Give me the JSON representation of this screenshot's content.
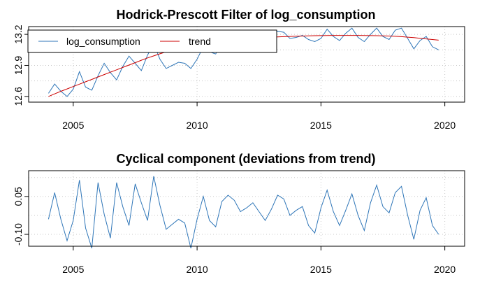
{
  "chart_data": [
    {
      "type": "line",
      "title": "Hodrick-Prescott Filter of log_consumption",
      "xlabel": "",
      "ylabel": "",
      "xlim": [
        2003.2,
        2020.8
      ],
      "ylim": [
        12.545,
        13.275
      ],
      "x_ticks": [
        2005,
        2010,
        2015,
        2020
      ],
      "y_ticks": [
        12.6,
        12.9,
        13.2
      ],
      "y_tick_labels": [
        "12.6",
        "12.9",
        "13.2"
      ],
      "grid": true,
      "legend_position": "top-left",
      "x": [
        2004.0,
        2004.25,
        2004.5,
        2004.75,
        2005.0,
        2005.25,
        2005.5,
        2005.75,
        2006.0,
        2006.25,
        2006.5,
        2006.75,
        2007.0,
        2007.25,
        2007.5,
        2007.75,
        2008.0,
        2008.25,
        2008.5,
        2008.75,
        2009.0,
        2009.25,
        2009.5,
        2009.75,
        2010.0,
        2010.25,
        2010.5,
        2010.75,
        2011.0,
        2011.25,
        2011.5,
        2011.75,
        2012.0,
        2012.25,
        2012.5,
        2012.75,
        2013.0,
        2013.25,
        2013.5,
        2013.75,
        2014.0,
        2014.25,
        2014.5,
        2014.75,
        2015.0,
        2015.25,
        2015.5,
        2015.75,
        2016.0,
        2016.25,
        2016.5,
        2016.75,
        2017.0,
        2017.25,
        2017.5,
        2017.75,
        2018.0,
        2018.25,
        2018.5,
        2018.75,
        2019.0,
        2019.25,
        2019.5,
        2019.75
      ],
      "series": [
        {
          "name": "log_consumption",
          "color": "#2f76b8",
          "values": [
            12.63,
            12.72,
            12.65,
            12.6,
            12.67,
            12.84,
            12.69,
            12.66,
            12.8,
            12.92,
            12.83,
            12.76,
            12.89,
            12.99,
            12.92,
            12.85,
            13.0,
            13.11,
            12.96,
            12.87,
            12.9,
            12.93,
            12.92,
            12.87,
            12.96,
            13.08,
            13.03,
            13.01,
            13.11,
            13.16,
            13.15,
            13.12,
            13.2,
            13.18,
            13.12,
            13.14,
            13.19,
            13.23,
            13.22,
            13.16,
            13.17,
            13.19,
            13.15,
            13.13,
            13.16,
            13.25,
            13.18,
            13.14,
            13.21,
            13.26,
            13.17,
            13.13,
            13.2,
            13.26,
            13.18,
            13.15,
            13.24,
            13.26,
            13.16,
            13.06,
            13.14,
            13.18,
            13.08,
            13.05
          ]
        },
        {
          "name": "trend",
          "color": "#cc0000",
          "values": [
            12.6,
            12.625,
            12.65,
            12.673,
            12.696,
            12.719,
            12.742,
            12.765,
            12.788,
            12.811,
            12.834,
            12.857,
            12.88,
            12.903,
            12.926,
            12.95,
            12.972,
            12.992,
            13.012,
            13.03,
            13.046,
            13.06,
            13.072,
            13.083,
            13.093,
            13.103,
            13.112,
            13.12,
            13.128,
            13.135,
            13.142,
            13.149,
            13.155,
            13.16,
            13.164,
            13.168,
            13.172,
            13.175,
            13.178,
            13.18,
            13.182,
            13.184,
            13.186,
            13.187,
            13.188,
            13.189,
            13.19,
            13.19,
            13.19,
            13.19,
            13.19,
            13.189,
            13.188,
            13.187,
            13.186,
            13.184,
            13.181,
            13.178,
            13.173,
            13.168,
            13.162,
            13.156,
            13.15,
            13.144
          ]
        }
      ]
    },
    {
      "type": "line",
      "title": "Cyclical component (deviations from trend)",
      "xlabel": "",
      "ylabel": "",
      "xlim": [
        2003.2,
        2020.8
      ],
      "ylim": [
        -0.147,
        0.152
      ],
      "x_ticks": [
        2005,
        2010,
        2015,
        2020
      ],
      "y_ticks": [
        -0.1,
        0.05
      ],
      "y_tick_labels": [
        "-0.10",
        "0.05"
      ],
      "grid": true,
      "x": [
        2004.0,
        2004.25,
        2004.5,
        2004.75,
        2005.0,
        2005.25,
        2005.5,
        2005.75,
        2006.0,
        2006.25,
        2006.5,
        2006.75,
        2007.0,
        2007.25,
        2007.5,
        2007.75,
        2008.0,
        2008.25,
        2008.5,
        2008.75,
        2009.0,
        2009.25,
        2009.5,
        2009.75,
        2010.0,
        2010.25,
        2010.5,
        2010.75,
        2011.0,
        2011.25,
        2011.5,
        2011.75,
        2012.0,
        2012.25,
        2012.5,
        2012.75,
        2013.0,
        2013.25,
        2013.5,
        2013.75,
        2014.0,
        2014.25,
        2014.5,
        2014.75,
        2015.0,
        2015.25,
        2015.5,
        2015.75,
        2016.0,
        2016.25,
        2016.5,
        2016.75,
        2017.0,
        2017.25,
        2017.5,
        2017.75,
        2018.0,
        2018.25,
        2018.5,
        2018.75,
        2019.0,
        2019.25,
        2019.5,
        2019.75
      ],
      "series": [
        {
          "color": "#2f76b8",
          "values": [
            -0.04,
            0.065,
            -0.04,
            -0.125,
            -0.045,
            0.115,
            -0.075,
            -0.155,
            0.105,
            -0.02,
            -0.115,
            0.105,
            0.01,
            -0.065,
            0.1,
            0.025,
            -0.045,
            0.13,
            0.015,
            -0.08,
            -0.06,
            -0.04,
            -0.055,
            -0.155,
            -0.04,
            0.05,
            -0.045,
            -0.07,
            0.03,
            0.055,
            0.035,
            -0.01,
            0.005,
            0.025,
            -0.01,
            -0.045,
            0.0,
            0.055,
            0.04,
            -0.025,
            -0.005,
            0.01,
            -0.065,
            -0.095,
            0.005,
            0.075,
            -0.01,
            -0.065,
            -0.005,
            0.06,
            -0.025,
            -0.085,
            0.025,
            0.095,
            0.01,
            -0.015,
            0.065,
            0.09,
            -0.025,
            -0.12,
            -0.005,
            0.045,
            -0.065,
            -0.1
          ]
        }
      ]
    }
  ]
}
